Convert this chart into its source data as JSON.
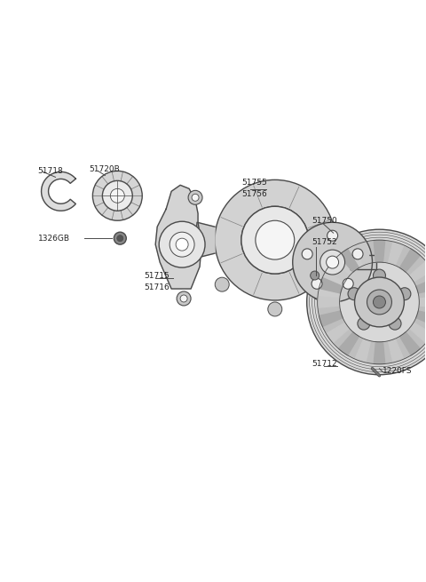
{
  "bg_color": "#ffffff",
  "lc": "#4a4a4a",
  "lc_light": "#888888",
  "fill_main": "#e8e8e8",
  "fill_dark": "#c8c8c8",
  "fill_white": "#ffffff",
  "label_fs": 6.5,
  "label_color": "#222222",
  "fig_width": 4.8,
  "fig_height": 6.55,
  "dpi": 100,
  "xlim": [
    0,
    480
  ],
  "ylim": [
    0,
    655
  ]
}
